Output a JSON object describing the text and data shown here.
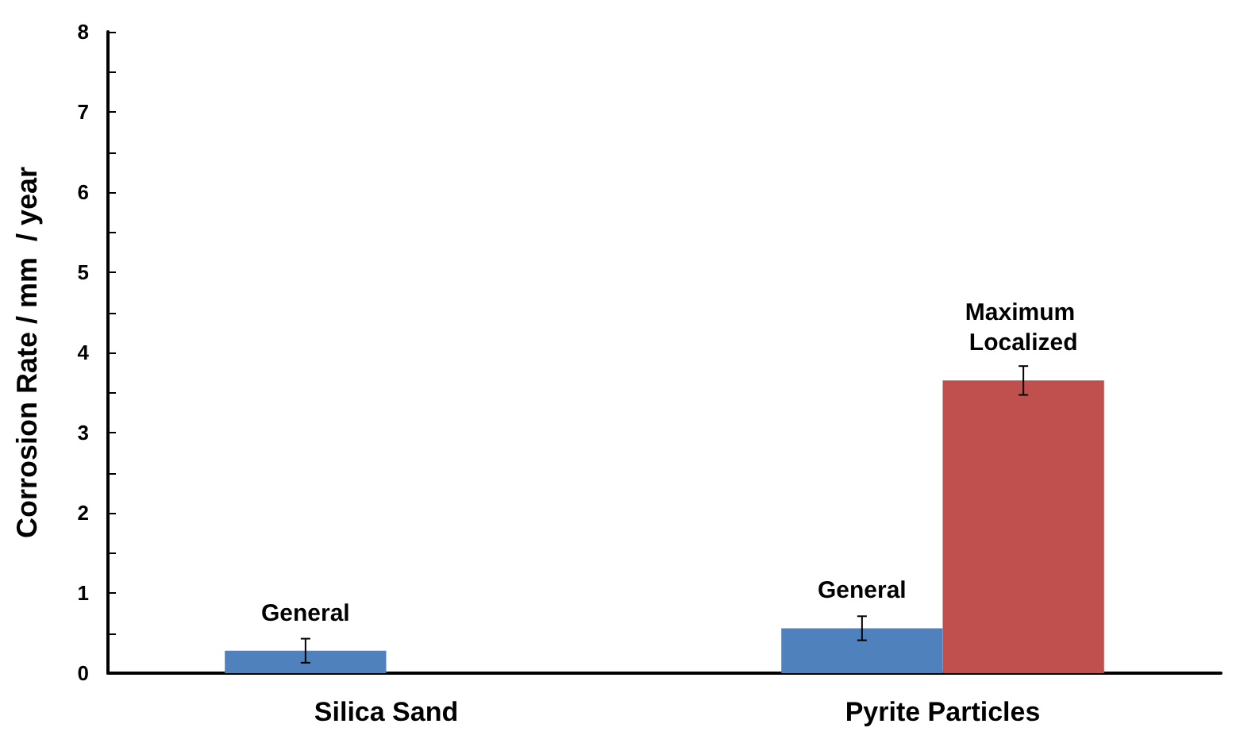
{
  "chart_data": {
    "type": "bar",
    "ylabel": "Corrosion Rate / mm  / year",
    "categories": [
      "Silica Sand",
      "Pyrite Particles"
    ],
    "series": [
      {
        "name": "General",
        "color": "#4f81bd",
        "values": [
          0.28,
          0.56
        ],
        "errors": [
          0.15,
          0.15
        ]
      },
      {
        "name": "Maximum Localized",
        "color": "#c0504d",
        "values": [
          null,
          3.65
        ],
        "errors": [
          null,
          0.18
        ]
      }
    ],
    "ylim": [
      0,
      8
    ],
    "yticks": [
      0,
      {
        "value": 0.5,
        "label": null
      },
      1,
      {
        "value": 1.5,
        "label": null
      },
      2,
      {
        "value": 2.5,
        "label": null
      },
      3,
      {
        "value": 3.5,
        "label": null
      },
      4,
      {
        "value": 4.5,
        "label": null
      },
      5,
      {
        "value": 5.5,
        "label": null
      },
      6,
      {
        "value": 6.5,
        "label": null
      },
      7,
      {
        "value": 7.5,
        "label": null
      },
      8
    ],
    "grid": false,
    "legend": false
  }
}
